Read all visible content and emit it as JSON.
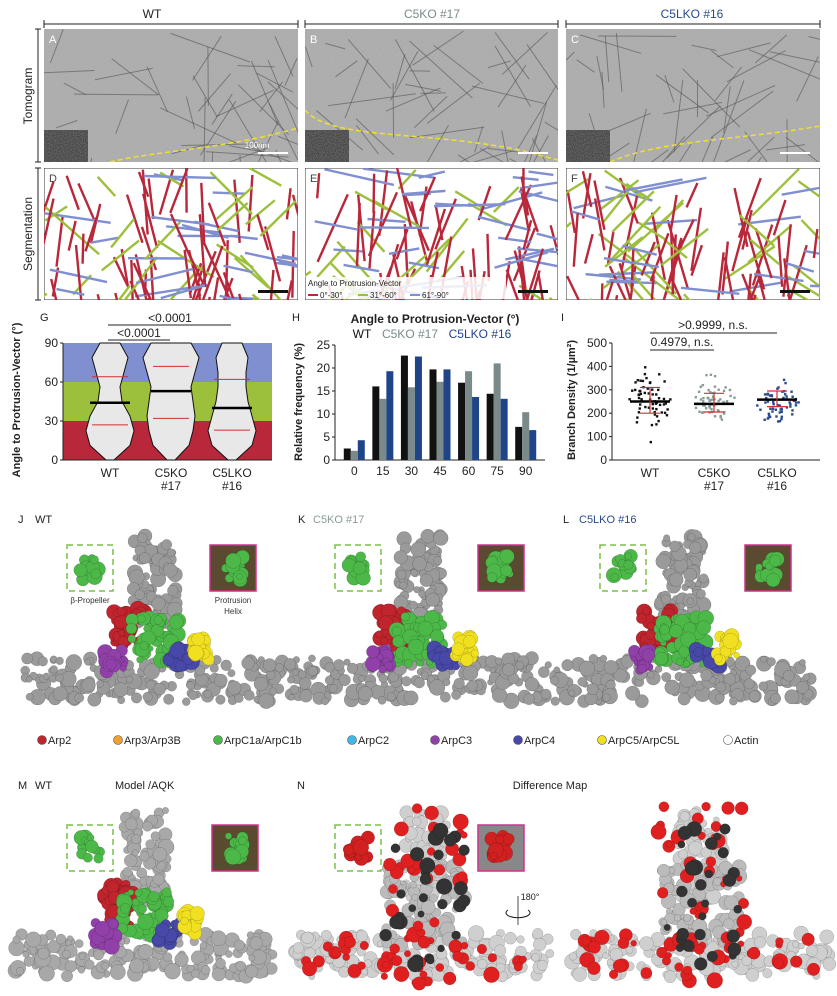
{
  "columns": [
    {
      "label": "WT",
      "color": "#222222"
    },
    {
      "label": "C5KO #17",
      "color": "#7a8a8a"
    },
    {
      "label": "C5LKO #16",
      "color": "#2a4a8a"
    }
  ],
  "rows": {
    "tomogram": "Tomogram",
    "segmentation": "Segmentation"
  },
  "panels": {
    "A": "A",
    "B": "B",
    "C": "C",
    "D": "D",
    "E": "E",
    "F": "F",
    "G": "G",
    "H": "H",
    "I": "I",
    "J": "J",
    "K": "K",
    "L": "L",
    "M": "M",
    "N": "N"
  },
  "scale_bar": "100nm",
  "segmentation_legend": {
    "title": "Angle to Protrusion-Vector",
    "items": [
      {
        "label": "0°-30°",
        "color": "#b8283a"
      },
      {
        "label": "31°-60°",
        "color": "#9dc03c"
      },
      {
        "label": "61°-90°",
        "color": "#7f8fd0"
      }
    ]
  },
  "chart_data": [
    {
      "type": "violin",
      "panel": "G",
      "ylabel": "Angle to Protrusion-Vector (°)",
      "ylim": [
        0,
        90
      ],
      "yticks": [
        "0",
        "30",
        "60",
        "90"
      ],
      "categories": [
        [
          "WT"
        ],
        [
          "C5KO",
          "#17"
        ],
        [
          "C5LKO",
          "#16"
        ]
      ],
      "median": [
        44,
        53,
        40
      ],
      "quartiles": [
        [
          27,
          64
        ],
        [
          32,
          72
        ],
        [
          23,
          62
        ]
      ],
      "bands": [
        {
          "range": [
            0,
            30
          ],
          "color": "#b8283a"
        },
        {
          "range": [
            30,
            60
          ],
          "color": "#9dc03c"
        },
        {
          "range": [
            60,
            90
          ],
          "color": "#7f8fd0"
        }
      ],
      "comparisons": [
        {
          "pair": [
            "WT",
            "C5KO #17"
          ],
          "label": "<0.0001"
        },
        {
          "pair": [
            "WT",
            "C5LKO #16"
          ],
          "label": "<0.0001"
        }
      ]
    },
    {
      "type": "bar",
      "panel": "H",
      "title": "Angle to Protrusion-Vector (°)",
      "ylabel": "Relative frequency (%)",
      "ylim": [
        0,
        25
      ],
      "yticks": [
        "0",
        "5",
        "10",
        "15",
        "20",
        "25"
      ],
      "categories": [
        "0",
        "15",
        "30",
        "45",
        "60",
        "75",
        "90"
      ],
      "series": [
        {
          "name": "WT",
          "color": "#111111",
          "values": [
            2.5,
            16,
            22.7,
            19.7,
            16.8,
            14.4,
            7.2
          ]
        },
        {
          "name": "C5KO #17",
          "color": "#7a8a8a",
          "values": [
            2.0,
            13.3,
            15.8,
            17.0,
            19.3,
            21.0,
            10.4
          ]
        },
        {
          "name": "C5LKO #16",
          "color": "#1f4488",
          "values": [
            4.3,
            19.3,
            22.5,
            19.7,
            13.7,
            13.3,
            6.5
          ]
        }
      ]
    },
    {
      "type": "scatter",
      "panel": "I",
      "ylabel": "Branch Density (1/µm²)",
      "ylim": [
        0,
        500
      ],
      "yticks": [
        "0",
        "100",
        "200",
        "300",
        "400",
        "500"
      ],
      "categories": [
        [
          "WT"
        ],
        [
          "C5KO",
          "#17"
        ],
        [
          "C5LKO",
          "#16"
        ]
      ],
      "colors": [
        "#111111",
        "#8a9a9a",
        "#2a4a8a"
      ],
      "mean": [
        250,
        240,
        258
      ],
      "sd": [
        [
          200,
          310
        ],
        [
          205,
          285
        ],
        [
          228,
          295
        ]
      ],
      "range": [
        [
          70,
          430
        ],
        [
          115,
          395
        ],
        [
          125,
          365
        ]
      ],
      "comparisons": [
        {
          "pair": [
            "WT",
            "C5KO #17"
          ],
          "label": "0.4979, n.s."
        },
        {
          "pair": [
            "WT",
            "C5LKO #16"
          ],
          "label": ">0.9999, n.s."
        }
      ]
    }
  ],
  "structure_labels": {
    "beta_propeller": "β-Propeller",
    "protrusion_helix_1": "Protrusion",
    "protrusion_helix_2": "Helix"
  },
  "subunit_legend": [
    {
      "label": "Arp2",
      "color": "#c0242c"
    },
    {
      "label": "Arp3/Arp3B",
      "color": "#f0a030"
    },
    {
      "label": "ArpC1a/ArpC1b",
      "color": "#4cb848"
    },
    {
      "label": "ArpC2",
      "color": "#40b8e8"
    },
    {
      "label": "ArpC3",
      "color": "#9040a8"
    },
    {
      "label": "ArpC4",
      "color": "#4848a8"
    },
    {
      "label": "ArpC5/ArpC5L",
      "color": "#f0e020"
    },
    {
      "label": "Actin",
      "color": "#ffffff"
    }
  ],
  "bottom": {
    "m_label": "WT",
    "model_label": "Model /AQK",
    "diff_label": "Difference Map",
    "rotation": "180°"
  }
}
